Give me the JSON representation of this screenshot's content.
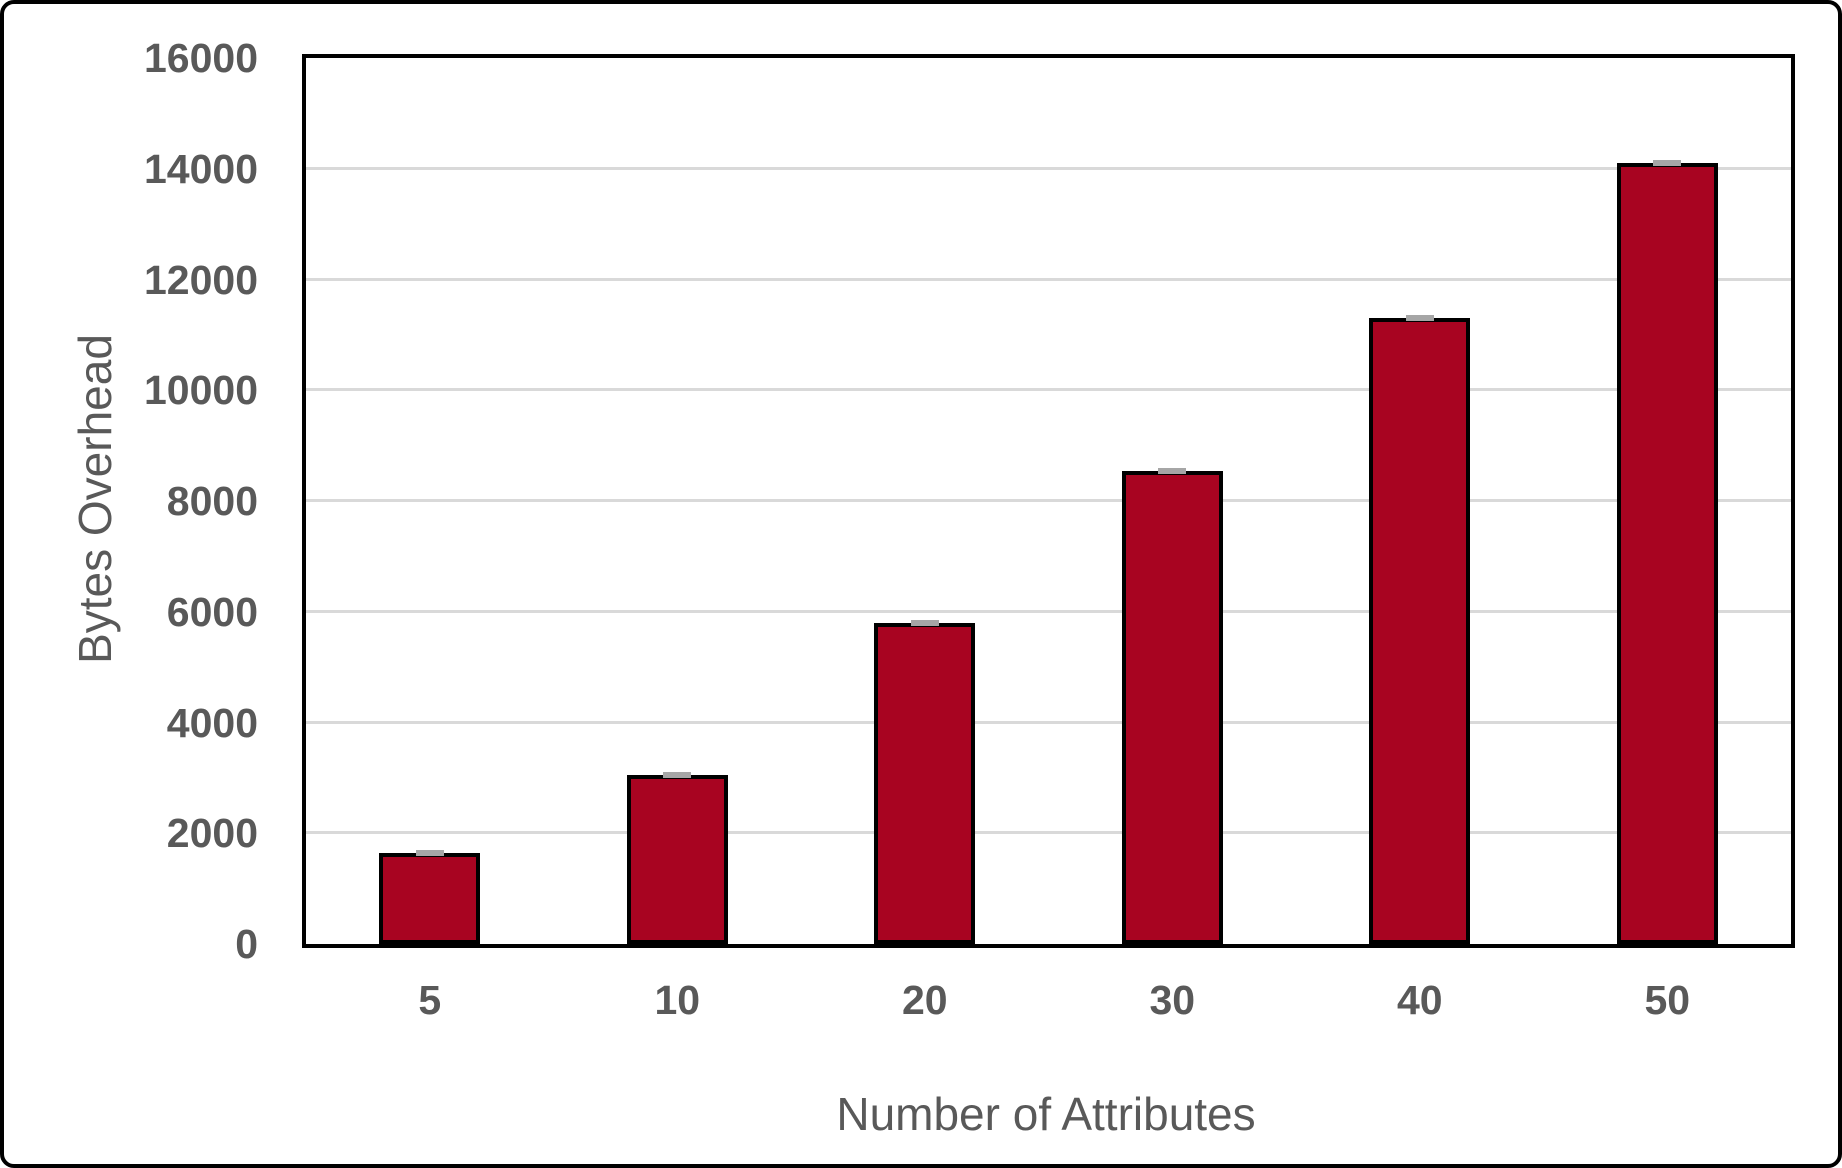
{
  "frame": {
    "background": "#FFFFFF",
    "border_color": "#000000"
  },
  "chart_data": {
    "type": "bar",
    "title": "",
    "categories": [
      "5",
      "10",
      "20",
      "30",
      "40",
      "50"
    ],
    "values": [
      1650,
      3050,
      5800,
      8550,
      11300,
      14100
    ],
    "error_caps": true,
    "xlabel": "Number of Attributes",
    "ylabel": "Bytes Overhead",
    "ylim": [
      0,
      16000
    ],
    "yticks": [
      0,
      2000,
      4000,
      6000,
      8000,
      10000,
      12000,
      14000,
      16000
    ],
    "grid": "horizontal",
    "legend": "none",
    "colors": {
      "bar_fill": "#A80421",
      "bar_border": "#000000",
      "gridline": "#D9D9D9",
      "axis_text": "#595959",
      "error_cap": "#A6A6A6",
      "plot_border": "#000000"
    }
  }
}
